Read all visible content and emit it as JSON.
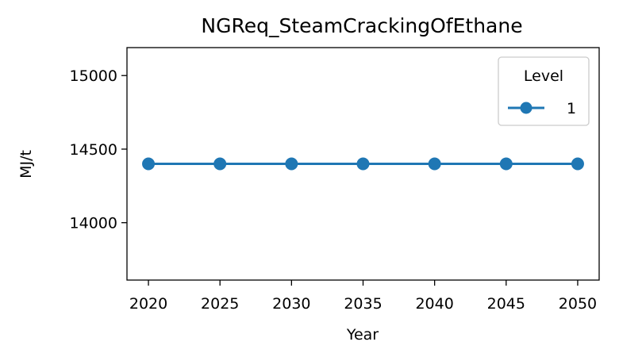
{
  "chart_data": {
    "type": "line",
    "title": "NGReq_SteamCrackingOfEthane",
    "xlabel": "Year",
    "ylabel": "MJ/t",
    "x": [
      2020,
      2025,
      2030,
      2035,
      2040,
      2045,
      2050
    ],
    "x_ticks": [
      "2020",
      "2025",
      "2030",
      "2035",
      "2040",
      "2045",
      "2050"
    ],
    "y_ticks": [
      "14000",
      "14500",
      "15000"
    ],
    "xlim": [
      2018.5,
      2051.5
    ],
    "ylim": [
      13610,
      15190
    ],
    "series": [
      {
        "name": "1",
        "color": "#1f77b4",
        "marker": "circle",
        "values": [
          14400,
          14400,
          14400,
          14400,
          14400,
          14400,
          14400
        ]
      }
    ],
    "legend": {
      "title": "Level",
      "placement": "top-right"
    },
    "grid": false
  }
}
